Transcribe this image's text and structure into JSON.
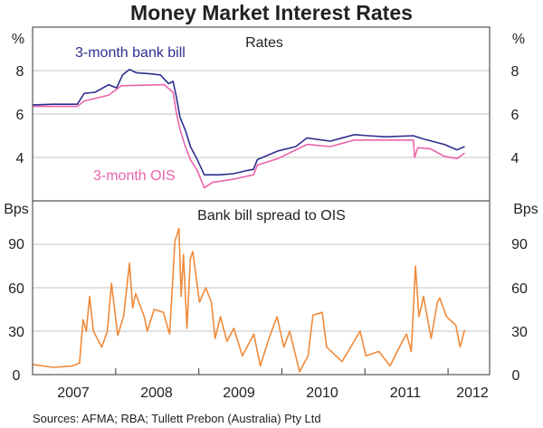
{
  "title": "Money Market Interest Rates",
  "source": "Sources: AFMA; RBA; Tullett Prebon (Australia) Pty Ltd",
  "colors": {
    "bank_bill": "#2e2e8f",
    "ois": "#ea64ab",
    "spread": "#f08a3a",
    "grid": "#cfcfcf",
    "frame": "#555555"
  },
  "chart_data": [
    {
      "type": "line",
      "title": "Rates",
      "ylabel_left": "%",
      "ylabel_right": "%",
      "ylim": [
        2,
        10
      ],
      "yticks": [
        "8",
        "6",
        "4"
      ],
      "ytick_values": [
        8,
        6,
        4
      ],
      "grid": true,
      "xlim": [
        "2007-01-01",
        "2012-07-01"
      ],
      "series": [
        {
          "name": "3-month bank bill",
          "points": [
            [
              "2007-01-01",
              6.42
            ],
            [
              "2007-04-01",
              6.45
            ],
            [
              "2007-07-15",
              6.45
            ],
            [
              "2007-08-15",
              6.95
            ],
            [
              "2007-10-01",
              7.0
            ],
            [
              "2007-12-01",
              7.35
            ],
            [
              "2008-01-05",
              7.2
            ],
            [
              "2008-02-01",
              7.8
            ],
            [
              "2008-03-01",
              8.05
            ],
            [
              "2008-04-01",
              7.9
            ],
            [
              "2008-06-01",
              7.85
            ],
            [
              "2008-07-15",
              7.8
            ],
            [
              "2008-08-20",
              7.4
            ],
            [
              "2008-09-10",
              7.5
            ],
            [
              "2008-09-25",
              6.75
            ],
            [
              "2008-10-10",
              5.85
            ],
            [
              "2008-11-05",
              5.2
            ],
            [
              "2008-11-25",
              4.5
            ],
            [
              "2008-12-25",
              3.9
            ],
            [
              "2009-01-25",
              3.2
            ],
            [
              "2009-04-01",
              3.2
            ],
            [
              "2009-06-01",
              3.25
            ],
            [
              "2009-08-01",
              3.4
            ],
            [
              "2009-08-28",
              3.45
            ],
            [
              "2009-09-15",
              3.9
            ],
            [
              "2009-12-15",
              4.3
            ],
            [
              "2010-03-01",
              4.5
            ],
            [
              "2010-04-20",
              4.9
            ],
            [
              "2010-08-01",
              4.75
            ],
            [
              "2010-11-15",
              5.05
            ],
            [
              "2011-01-15",
              5.0
            ],
            [
              "2011-04-01",
              4.95
            ],
            [
              "2011-08-01",
              5.0
            ],
            [
              "2011-09-15",
              4.85
            ],
            [
              "2011-12-15",
              4.6
            ],
            [
              "2012-02-10",
              4.35
            ],
            [
              "2012-03-13",
              4.5
            ]
          ]
        },
        {
          "name": "3-month OIS",
          "points": [
            [
              "2007-01-01",
              6.35
            ],
            [
              "2007-07-15",
              6.35
            ],
            [
              "2007-08-15",
              6.6
            ],
            [
              "2007-12-01",
              6.87
            ],
            [
              "2008-01-25",
              7.3
            ],
            [
              "2008-08-01",
              7.35
            ],
            [
              "2008-09-10",
              7.0
            ],
            [
              "2008-09-25",
              6.0
            ],
            [
              "2008-10-10",
              5.3
            ],
            [
              "2008-10-30",
              4.6
            ],
            [
              "2008-11-25",
              3.9
            ],
            [
              "2008-12-25",
              3.4
            ],
            [
              "2009-01-25",
              2.6
            ],
            [
              "2009-03-01",
              2.85
            ],
            [
              "2009-06-01",
              3.0
            ],
            [
              "2009-08-28",
              3.2
            ],
            [
              "2009-09-15",
              3.65
            ],
            [
              "2009-12-15",
              3.95
            ],
            [
              "2010-04-20",
              4.6
            ],
            [
              "2010-08-01",
              4.5
            ],
            [
              "2010-11-15",
              4.8
            ],
            [
              "2011-08-01",
              4.8
            ],
            [
              "2011-08-06",
              4.0
            ],
            [
              "2011-08-20",
              4.45
            ],
            [
              "2011-10-15",
              4.4
            ],
            [
              "2011-12-15",
              4.05
            ],
            [
              "2012-02-10",
              3.95
            ],
            [
              "2012-03-13",
              4.2
            ]
          ]
        }
      ]
    },
    {
      "type": "line",
      "title": "Bank bill spread to OIS",
      "ylabel_left": "Bps",
      "ylabel_right": "Bps",
      "ylim": [
        0,
        120
      ],
      "yticks": [
        "90",
        "60",
        "30",
        "0"
      ],
      "ytick_values": [
        90,
        60,
        30,
        0
      ],
      "grid": true,
      "xlim": [
        "2007-01-01",
        "2012-07-01"
      ],
      "xticks": [
        "2007",
        "2008",
        "2009",
        "2010",
        "2011",
        "2012"
      ],
      "series": [
        {
          "points": [
            [
              "2007-01-01",
              7
            ],
            [
              "2007-04-01",
              5
            ],
            [
              "2007-06-24",
              6
            ],
            [
              "2007-07-25",
              8
            ],
            [
              "2007-08-10",
              38
            ],
            [
              "2007-08-24",
              30
            ],
            [
              "2007-09-08",
              54
            ],
            [
              "2007-09-25",
              30
            ],
            [
              "2007-11-01",
              19
            ],
            [
              "2007-11-25",
              30
            ],
            [
              "2007-12-13",
              63
            ],
            [
              "2008-01-10",
              27
            ],
            [
              "2008-02-05",
              40
            ],
            [
              "2008-03-01",
              77
            ],
            [
              "2008-03-15",
              46
            ],
            [
              "2008-03-28",
              56
            ],
            [
              "2008-05-05",
              40
            ],
            [
              "2008-05-18",
              30
            ],
            [
              "2008-06-18",
              45
            ],
            [
              "2008-07-28",
              43
            ],
            [
              "2008-08-25",
              28
            ],
            [
              "2008-09-18",
              92
            ],
            [
              "2008-10-05",
              101
            ],
            [
              "2008-10-15",
              54
            ],
            [
              "2008-10-25",
              83
            ],
            [
              "2008-11-10",
              32
            ],
            [
              "2008-11-25",
              80
            ],
            [
              "2008-12-05",
              85
            ],
            [
              "2009-01-04",
              50
            ],
            [
              "2009-02-01",
              60
            ],
            [
              "2009-02-26",
              50
            ],
            [
              "2009-03-12",
              25
            ],
            [
              "2009-04-05",
              40
            ],
            [
              "2009-05-03",
              23
            ],
            [
              "2009-06-03",
              32
            ],
            [
              "2009-07-10",
              13
            ],
            [
              "2009-08-30",
              28
            ],
            [
              "2009-09-28",
              6
            ],
            [
              "2009-11-05",
              25
            ],
            [
              "2009-12-10",
              40
            ],
            [
              "2010-01-10",
              19
            ],
            [
              "2010-02-05",
              30
            ],
            [
              "2010-03-18",
              2
            ],
            [
              "2010-04-25",
              13
            ],
            [
              "2010-05-16",
              41
            ],
            [
              "2010-06-26",
              43
            ],
            [
              "2010-07-15",
              19
            ],
            [
              "2010-09-22",
              9
            ],
            [
              "2010-12-10",
              30
            ],
            [
              "2011-01-05",
              13
            ],
            [
              "2011-03-01",
              16
            ],
            [
              "2011-04-20",
              6
            ],
            [
              "2011-06-10",
              22
            ],
            [
              "2011-07-01",
              28
            ],
            [
              "2011-07-22",
              16
            ],
            [
              "2011-08-10",
              75
            ],
            [
              "2011-08-25",
              40
            ],
            [
              "2011-09-15",
              54
            ],
            [
              "2011-10-18",
              25
            ],
            [
              "2011-11-15",
              50
            ],
            [
              "2011-11-25",
              53
            ],
            [
              "2011-12-25",
              40
            ],
            [
              "2012-02-05",
              34
            ],
            [
              "2012-02-24",
              19
            ],
            [
              "2012-03-13",
              31
            ]
          ]
        }
      ]
    }
  ]
}
